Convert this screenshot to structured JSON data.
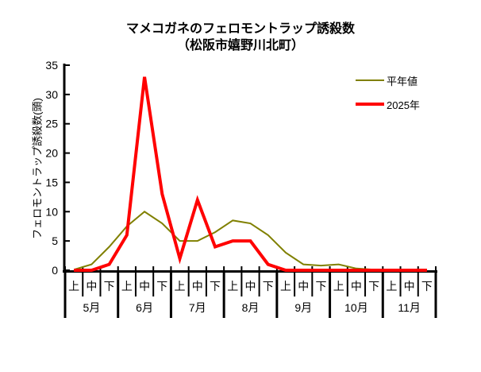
{
  "title": {
    "line1": "マメコガネのフェロモントラップ誘殺数",
    "line2": "（松阪市嬉野川北町）"
  },
  "y_axis": {
    "label": "フェロモントラップ誘殺数(頭)",
    "ticks": [
      0,
      5,
      10,
      15,
      20,
      25,
      30,
      35
    ],
    "max": 35
  },
  "x_axis": {
    "months": [
      "5月",
      "6月",
      "7月",
      "8月",
      "9月",
      "10月",
      "11月"
    ],
    "periods": [
      "上",
      "中",
      "下"
    ]
  },
  "legend": {
    "items": [
      {
        "label": "平年値",
        "color": "#808000",
        "thickness": 2
      },
      {
        "label": "2025年",
        "color": "#ff0000",
        "thickness": 4
      }
    ]
  },
  "chart_data": {
    "type": "line",
    "title": "マメコガネのフェロモントラップ誘殺数（松阪市嬉野川北町）",
    "ylabel": "フェロモントラップ誘殺数(頭)",
    "ylim": [
      0,
      35
    ],
    "ytick_step": 5,
    "grid": false,
    "legend_position": "top-right",
    "categories": [
      "5月上",
      "5月中",
      "5月下",
      "6月上",
      "6月中",
      "6月下",
      "7月上",
      "7月中",
      "7月下",
      "8月上",
      "8月中",
      "8月下",
      "9月上",
      "9月中",
      "9月下",
      "10月上",
      "10月中",
      "10月下",
      "11月上",
      "11月中",
      "11月下"
    ],
    "series": [
      {
        "name": "平年値",
        "color": "#808000",
        "values": [
          0.1,
          1,
          4,
          7.5,
          10,
          8,
          5,
          5,
          6.5,
          8.5,
          8,
          6,
          3,
          1,
          0.8,
          1,
          0.3,
          0.1,
          0.1,
          0.1,
          0.1
        ]
      },
      {
        "name": "2025年",
        "color": "#ff0000",
        "values": [
          0,
          0,
          1,
          6,
          33,
          13,
          2,
          12,
          4,
          5,
          5,
          1,
          0,
          0,
          0,
          0,
          0,
          0,
          0,
          0,
          0
        ]
      }
    ]
  }
}
